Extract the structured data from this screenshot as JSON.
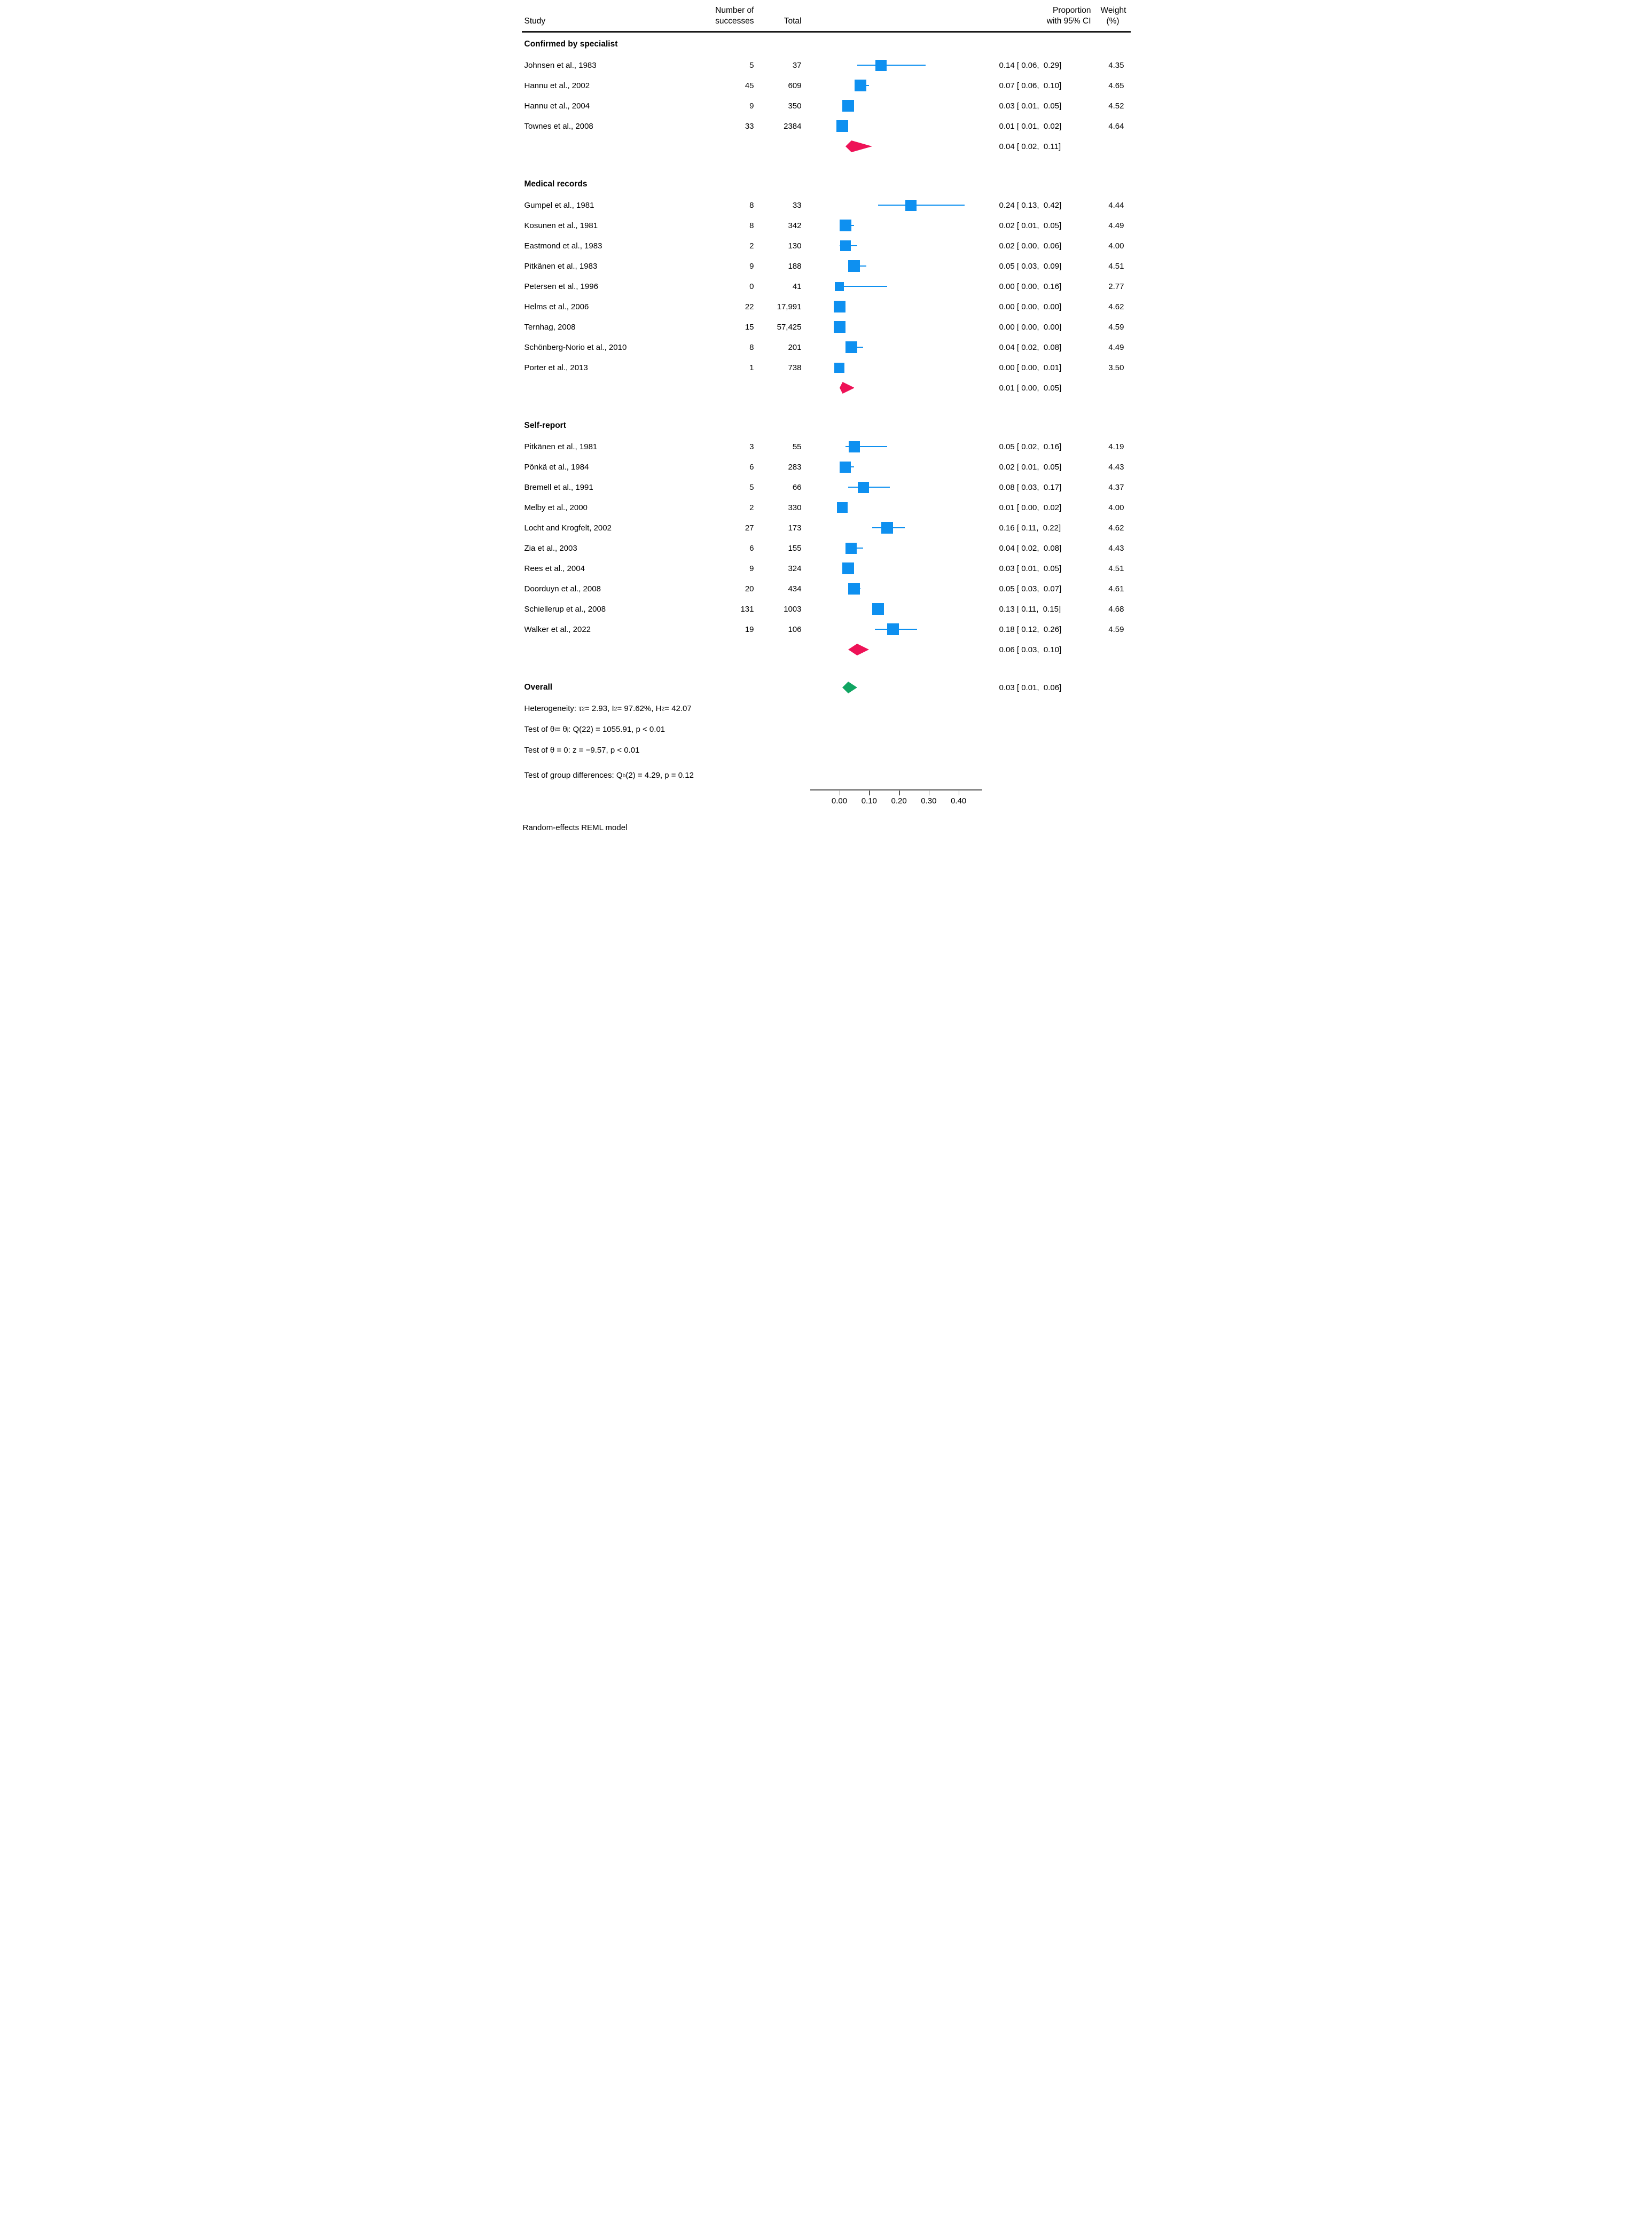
{
  "header": {
    "study": "Study",
    "successes_line1": "Number of",
    "successes_line2": "successes",
    "total": "Total",
    "proportion_line1": "Proportion",
    "proportion_line2": "with 95% CI",
    "weight_line1": "Weight",
    "weight_line2": "(%)"
  },
  "chart_data": {
    "type": "forest",
    "title": "",
    "xlabel": "Proportion",
    "xlim": [
      0,
      0.45
    ],
    "axis_ticks": {
      "labels": [
        "0.00",
        "0.10",
        "0.20",
        "0.30",
        "0.40"
      ],
      "values": [
        0,
        0.1,
        0.2,
        0.3,
        0.4
      ]
    },
    "groups": [
      {
        "label": "Confirmed by specialist",
        "studies": [
          {
            "study": "Johnsen et al., 1983",
            "successes": "5",
            "total": "37",
            "est": 0.14,
            "lo": 0.06,
            "hi": 0.29,
            "ci_text": "0.14 [ 0.06,  0.29]",
            "weight": "4.35",
            "weight_num": 4.35
          },
          {
            "study": "Hannu et al., 2002",
            "successes": "45",
            "total": "609",
            "est": 0.07,
            "lo": 0.06,
            "hi": 0.1,
            "ci_text": "0.07 [ 0.06,  0.10]",
            "weight": "4.65",
            "weight_num": 4.65
          },
          {
            "study": "Hannu et al., 2004",
            "successes": "9",
            "total": "350",
            "est": 0.03,
            "lo": 0.01,
            "hi": 0.05,
            "ci_text": "0.03 [ 0.01,  0.05]",
            "weight": "4.52",
            "weight_num": 4.52
          },
          {
            "study": "Townes et al., 2008",
            "successes": "33",
            "total": "2384",
            "est": 0.01,
            "lo": 0.01,
            "hi": 0.02,
            "ci_text": "0.01 [ 0.01,  0.02]",
            "weight": "4.64",
            "weight_num": 4.64
          }
        ],
        "summary": {
          "est": 0.04,
          "lo": 0.02,
          "hi": 0.11,
          "ci_text": "0.04 [ 0.02,  0.11]"
        }
      },
      {
        "label": "Medical records",
        "studies": [
          {
            "study": "Gumpel et al., 1981",
            "successes": "8",
            "total": "33",
            "est": 0.24,
            "lo": 0.13,
            "hi": 0.42,
            "ci_text": "0.24 [ 0.13,  0.42]",
            "weight": "4.44",
            "weight_num": 4.44
          },
          {
            "study": "Kosunen et al., 1981",
            "successes": "8",
            "total": "342",
            "est": 0.02,
            "lo": 0.01,
            "hi": 0.05,
            "ci_text": "0.02 [ 0.01,  0.05]",
            "weight": "4.49",
            "weight_num": 4.49
          },
          {
            "study": "Eastmond et al., 1983",
            "successes": "2",
            "total": "130",
            "est": 0.02,
            "lo": 0.0,
            "hi": 0.06,
            "ci_text": "0.02 [ 0.00,  0.06]",
            "weight": "4.00",
            "weight_num": 4.0
          },
          {
            "study": "Pitkänen et al., 1983",
            "successes": "9",
            "total": "188",
            "est": 0.05,
            "lo": 0.03,
            "hi": 0.09,
            "ci_text": "0.05 [ 0.03,  0.09]",
            "weight": "4.51",
            "weight_num": 4.51
          },
          {
            "study": "Petersen et al., 1996",
            "successes": "0",
            "total": "41",
            "est": 0.0,
            "lo": 0.0,
            "hi": 0.16,
            "ci_text": "0.00 [ 0.00,  0.16]",
            "weight": "2.77",
            "weight_num": 2.77
          },
          {
            "study": "Helms et al., 2006",
            "successes": "22",
            "total": "17,991",
            "est": 0.0,
            "lo": 0.0,
            "hi": 0.0,
            "ci_text": "0.00 [ 0.00,  0.00]",
            "weight": "4.62",
            "weight_num": 4.62
          },
          {
            "study": "Ternhag, 2008",
            "successes": "15",
            "total": "57,425",
            "est": 0.0,
            "lo": 0.0,
            "hi": 0.0,
            "ci_text": "0.00 [ 0.00,  0.00]",
            "weight": "4.59",
            "weight_num": 4.59
          },
          {
            "study": "Schönberg-Norio et al., 2010",
            "successes": "8",
            "total": "201",
            "est": 0.04,
            "lo": 0.02,
            "hi": 0.08,
            "ci_text": "0.04 [ 0.02,  0.08]",
            "weight": "4.49",
            "weight_num": 4.49
          },
          {
            "study": "Porter et al., 2013",
            "successes": "1",
            "total": "738",
            "est": 0.0,
            "lo": 0.0,
            "hi": 0.01,
            "ci_text": "0.00 [ 0.00,  0.01]",
            "weight": "3.50",
            "weight_num": 3.5
          }
        ],
        "summary": {
          "est": 0.01,
          "lo": 0.0,
          "hi": 0.05,
          "ci_text": "0.01 [ 0.00,  0.05]"
        }
      },
      {
        "label": "Self-report",
        "studies": [
          {
            "study": "Pitkänen et al., 1981",
            "successes": "3",
            "total": "55",
            "est": 0.05,
            "lo": 0.02,
            "hi": 0.16,
            "ci_text": "0.05 [ 0.02,  0.16]",
            "weight": "4.19",
            "weight_num": 4.19
          },
          {
            "study": "Pönkä et al., 1984",
            "successes": "6",
            "total": "283",
            "est": 0.02,
            "lo": 0.01,
            "hi": 0.05,
            "ci_text": "0.02 [ 0.01,  0.05]",
            "weight": "4.43",
            "weight_num": 4.43
          },
          {
            "study": "Bremell et al., 1991",
            "successes": "5",
            "total": "66",
            "est": 0.08,
            "lo": 0.03,
            "hi": 0.17,
            "ci_text": "0.08 [ 0.03,  0.17]",
            "weight": "4.37",
            "weight_num": 4.37
          },
          {
            "study": "Melby et al., 2000",
            "successes": "2",
            "total": "330",
            "est": 0.01,
            "lo": 0.0,
            "hi": 0.02,
            "ci_text": "0.01 [ 0.00,  0.02]",
            "weight": "4.00",
            "weight_num": 4.0
          },
          {
            "study": "Locht and Krogfelt, 2002",
            "successes": "27",
            "total": "173",
            "est": 0.16,
            "lo": 0.11,
            "hi": 0.22,
            "ci_text": "0.16 [ 0.11,  0.22]",
            "weight": "4.62",
            "weight_num": 4.62
          },
          {
            "study": "Zia et al., 2003",
            "successes": "6",
            "total": "155",
            "est": 0.04,
            "lo": 0.02,
            "hi": 0.08,
            "ci_text": "0.04 [ 0.02,  0.08]",
            "weight": "4.43",
            "weight_num": 4.43
          },
          {
            "study": "Rees et al., 2004",
            "successes": "9",
            "total": "324",
            "est": 0.03,
            "lo": 0.01,
            "hi": 0.05,
            "ci_text": "0.03 [ 0.01,  0.05]",
            "weight": "4.51",
            "weight_num": 4.51
          },
          {
            "study": "Doorduyn et al., 2008",
            "successes": "20",
            "total": "434",
            "est": 0.05,
            "lo": 0.03,
            "hi": 0.07,
            "ci_text": "0.05 [ 0.03,  0.07]",
            "weight": "4.61",
            "weight_num": 4.61
          },
          {
            "study": "Schiellerup et al., 2008",
            "successes": "131",
            "total": "1003",
            "est": 0.13,
            "lo": 0.11,
            "hi": 0.15,
            "ci_text": "0.13 [ 0.11,  0.15]",
            "weight": "4.68",
            "weight_num": 4.68
          },
          {
            "study": "Walker et al., 2022",
            "successes": "19",
            "total": "106",
            "est": 0.18,
            "lo": 0.12,
            "hi": 0.26,
            "ci_text": "0.18 [ 0.12,  0.26]",
            "weight": "4.59",
            "weight_num": 4.59
          }
        ],
        "summary": {
          "est": 0.06,
          "lo": 0.03,
          "hi": 0.1,
          "ci_text": "0.06 [ 0.03,  0.10]"
        }
      }
    ],
    "overall": {
      "label": "Overall",
      "est": 0.03,
      "lo": 0.01,
      "hi": 0.06,
      "ci_text": "0.03 [ 0.01,  0.06]"
    }
  },
  "stats_lines": [
    {
      "name": "heterogeneity",
      "segments": [
        {
          "t": "text",
          "v": "Heterogeneity: τ"
        },
        {
          "t": "sup",
          "v": "2"
        },
        {
          "t": "text",
          "v": " = 2.93, I"
        },
        {
          "t": "sup",
          "v": "2"
        },
        {
          "t": "text",
          "v": " = 97.62%, H"
        },
        {
          "t": "sup",
          "v": "2"
        },
        {
          "t": "text",
          "v": " = 42.07"
        }
      ]
    },
    {
      "name": "test-theta-ij",
      "segments": [
        {
          "t": "text",
          "v": "Test of θ"
        },
        {
          "t": "sub",
          "v": "i"
        },
        {
          "t": "text",
          "v": " = θ"
        },
        {
          "t": "sub",
          "v": "j"
        },
        {
          "t": "text",
          "v": ": Q(22) = 1055.91, p < 0.01"
        }
      ]
    },
    {
      "name": "test-theta-zero",
      "segments": [
        {
          "t": "text",
          "v": "Test of θ = 0: z = −9.57, p < 0.01"
        }
      ]
    }
  ],
  "group_diff_line": {
    "name": "test-group-differences",
    "segments": [
      {
        "t": "text",
        "v": "Test of group differences: Q"
      },
      {
        "t": "sub",
        "v": "b"
      },
      {
        "t": "text",
        "v": "(2) = 4.29, p = 0.12"
      }
    ]
  },
  "footer": "Random-effects REML model",
  "colors": {
    "marker_blue": "#0E90F0",
    "summary_crimson": "#EE1257",
    "overall_green": "#10A562",
    "axis_gray": "#8a8a8a",
    "header_rule": "#1a1a1a"
  }
}
